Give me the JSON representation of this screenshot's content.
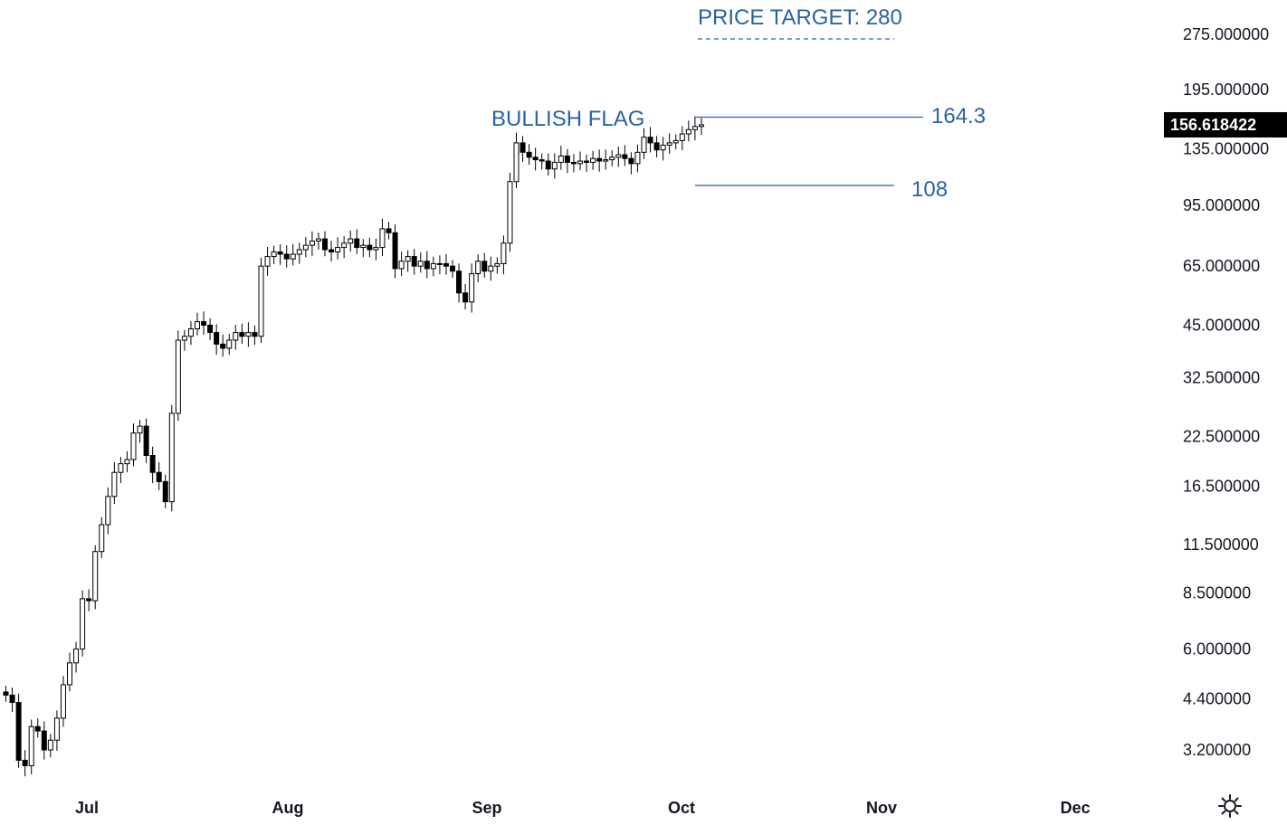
{
  "chart_data": {
    "type": "candlestick",
    "scale": "log",
    "grid": false,
    "legend": "none",
    "y_ticks": [
      "275.000000",
      "195.000000",
      "135.000000",
      "95.000000",
      "65.000000",
      "45.000000",
      "32.500000",
      "22.500000",
      "16.500000",
      "11.500000",
      "8.500000",
      "6.000000",
      "4.400000",
      "3.200000"
    ],
    "y_tick_values": [
      275,
      195,
      135,
      95,
      65,
      45,
      32.5,
      22.5,
      16.5,
      11.5,
      8.5,
      6,
      4.4,
      3.2
    ],
    "x_ticks": [
      "Jul",
      "Aug",
      "Sep",
      "Oct",
      "Nov",
      "Dec"
    ],
    "last_price": "156.618422",
    "last_price_value": 156.618422,
    "annotations": {
      "price_target": "PRICE TARGET: 280",
      "pattern": "BULLISH FLAG",
      "flag_top": "164.3",
      "flag_bottom": "108"
    },
    "levels": {
      "target": 280,
      "flag_top": 164.3,
      "flag_bottom": 108
    },
    "closes": [
      4.5,
      4.3,
      3.0,
      2.9,
      3.7,
      3.6,
      3.2,
      3.4,
      3.9,
      4.8,
      5.5,
      6.0,
      8.2,
      8.1,
      11.0,
      13.0,
      15.5,
      18.0,
      19.0,
      19.5,
      23.0,
      24.0,
      20.0,
      18.0,
      17.0,
      15.0,
      26.0,
      41.0,
      42.0,
      44.0,
      46.0,
      45.0,
      43.0,
      40.0,
      39.0,
      41.0,
      43.0,
      42.0,
      43.0,
      42.0,
      65.0,
      69.0,
      71.0,
      70.0,
      68.0,
      70.0,
      72.0,
      74.0,
      76.0,
      77.0,
      72.0,
      71.0,
      73.0,
      75.0,
      77.0,
      73.0,
      74.0,
      72.0,
      73.0,
      82.0,
      80.0,
      64.0,
      67.0,
      69.0,
      65.0,
      67.0,
      64.0,
      66.0,
      66.0,
      65.0,
      63.0,
      55.0,
      52.0,
      62.0,
      67.0,
      63.0,
      65.0,
      66.0,
      75.0,
      110.0,
      140.0,
      132.0,
      128.0,
      126.0,
      125.0,
      119.0,
      124.0,
      129.0,
      124.0,
      123.0,
      125.0,
      124.0,
      127.0,
      125.0,
      126.0,
      128.0,
      130.0,
      127.0,
      123.0,
      132.0,
      145.0,
      140.0,
      134.0,
      138.0,
      140.0,
      142.0,
      148.0,
      152.0,
      155.0,
      156.618422
    ]
  }
}
